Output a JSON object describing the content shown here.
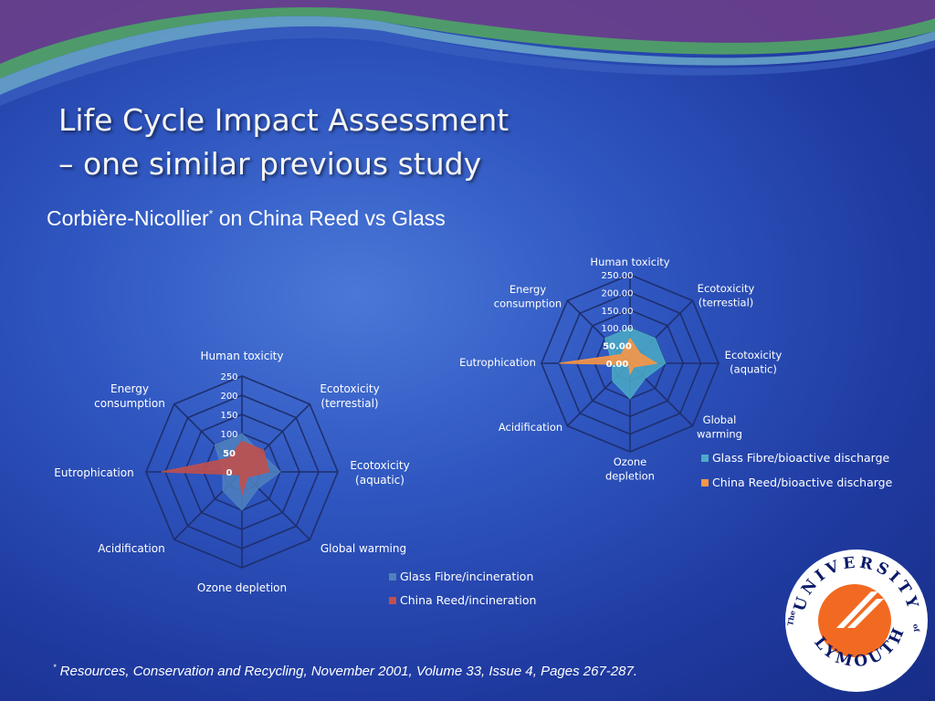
{
  "slide": {
    "title_line1": "Life Cycle Impact Assessment",
    "title_line2": "– one similar previous study",
    "subtitle_author": "Corbière-Nicollier",
    "subtitle_mark": "*",
    "subtitle_rest": " on China Reed vs Glass",
    "footnote_mark": "*",
    "footnote_text": " Resources, Conservation and Recycling, November 2001, Volume 33, Issue 4,  Pages 267-287."
  },
  "colors": {
    "glass_incineration": "#4f81bd",
    "reed_incineration": "#c0504d",
    "glass_discharge": "#4bacc6",
    "reed_discharge": "#f79646",
    "logo_orange": "#f26a21"
  },
  "logo": {
    "outer_text": "UNIVERSITY",
    "of_text": "of",
    "bottom_text": "PLYMOUTH",
    "the_text": "The"
  },
  "chart_data": [
    {
      "type": "radar",
      "categories": [
        "Human toxicity",
        "Ecotoxicity (terrestial)",
        "Ecotoxicity (aquatic)",
        "Global warming",
        "Ozone depletion",
        "Acidification",
        "Eutrophication",
        "Energy consumption"
      ],
      "tick_labels": [
        "0",
        "50",
        "100",
        "150",
        "200",
        "250"
      ],
      "range": [
        0,
        250
      ],
      "legend_position": "bottom-right",
      "series": [
        {
          "name": "Glass Fibre/incineration",
          "values": [
            100,
            70,
            100,
            60,
            100,
            70,
            50,
            100
          ]
        },
        {
          "name": "China Reed/incineration",
          "values": [
            80,
            80,
            70,
            20,
            60,
            10,
            210,
            50
          ]
        }
      ]
    },
    {
      "type": "radar",
      "categories": [
        "Human toxicity",
        "Ecotoxicity (terrestial)",
        "Ecotoxicity (aquatic)",
        "Global warming",
        "Ozone depletion",
        "Acidification",
        "Eutrophication",
        "Energy consumption"
      ],
      "tick_labels": [
        "0.00",
        "50.00",
        "100.00",
        "150.00",
        "200.00",
        "250.00"
      ],
      "range": [
        0,
        250
      ],
      "legend_position": "bottom-right",
      "series": [
        {
          "name": "Glass Fibre/bioactive discharge",
          "values": [
            100,
            100,
            100,
            60,
            100,
            70,
            50,
            100
          ]
        },
        {
          "name": "China Reed/bioactive discharge",
          "values": [
            70,
            40,
            75,
            15,
            30,
            5,
            200,
            35
          ]
        }
      ]
    }
  ]
}
